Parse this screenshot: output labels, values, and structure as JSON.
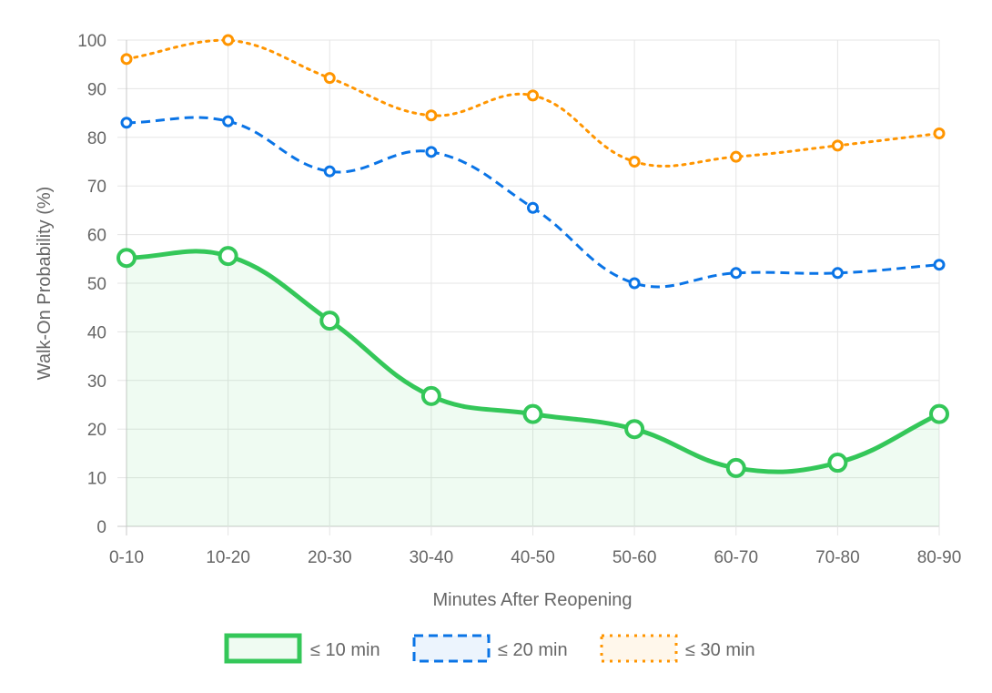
{
  "chart_data": {
    "type": "line",
    "xlabel": "Minutes After Reopening",
    "ylabel": "Walk-On Probability (%)",
    "categories": [
      "0-10",
      "10-20",
      "20-30",
      "30-40",
      "40-50",
      "50-60",
      "60-70",
      "70-80",
      "80-90"
    ],
    "ylim": [
      0,
      100
    ],
    "yticks": [
      0,
      10,
      20,
      30,
      40,
      50,
      60,
      70,
      80,
      90,
      100
    ],
    "grid": true,
    "legend_position": "bottom",
    "series": [
      {
        "name": "≤ 10 min",
        "color": "#34c759",
        "fill": "rgba(52,199,89,0.08)",
        "style": "solid",
        "filled": true,
        "values": [
          55.2,
          55.6,
          42.3,
          26.8,
          23.1,
          20.0,
          12.0,
          13.1,
          23.1
        ]
      },
      {
        "name": "≤ 20 min",
        "color": "#0a74e6",
        "fill": "rgba(10,116,230,0.08)",
        "style": "dashed",
        "filled": false,
        "values": [
          83.0,
          83.3,
          73.0,
          77.0,
          65.5,
          50.0,
          52.1,
          52.1,
          53.8
        ]
      },
      {
        "name": "≤ 30 min",
        "color": "#ff9500",
        "fill": "rgba(255,149,0,0.08)",
        "style": "dotted",
        "filled": false,
        "values": [
          96.1,
          100.0,
          92.2,
          84.5,
          88.6,
          75.0,
          76.0,
          78.3,
          80.8
        ]
      }
    ]
  }
}
